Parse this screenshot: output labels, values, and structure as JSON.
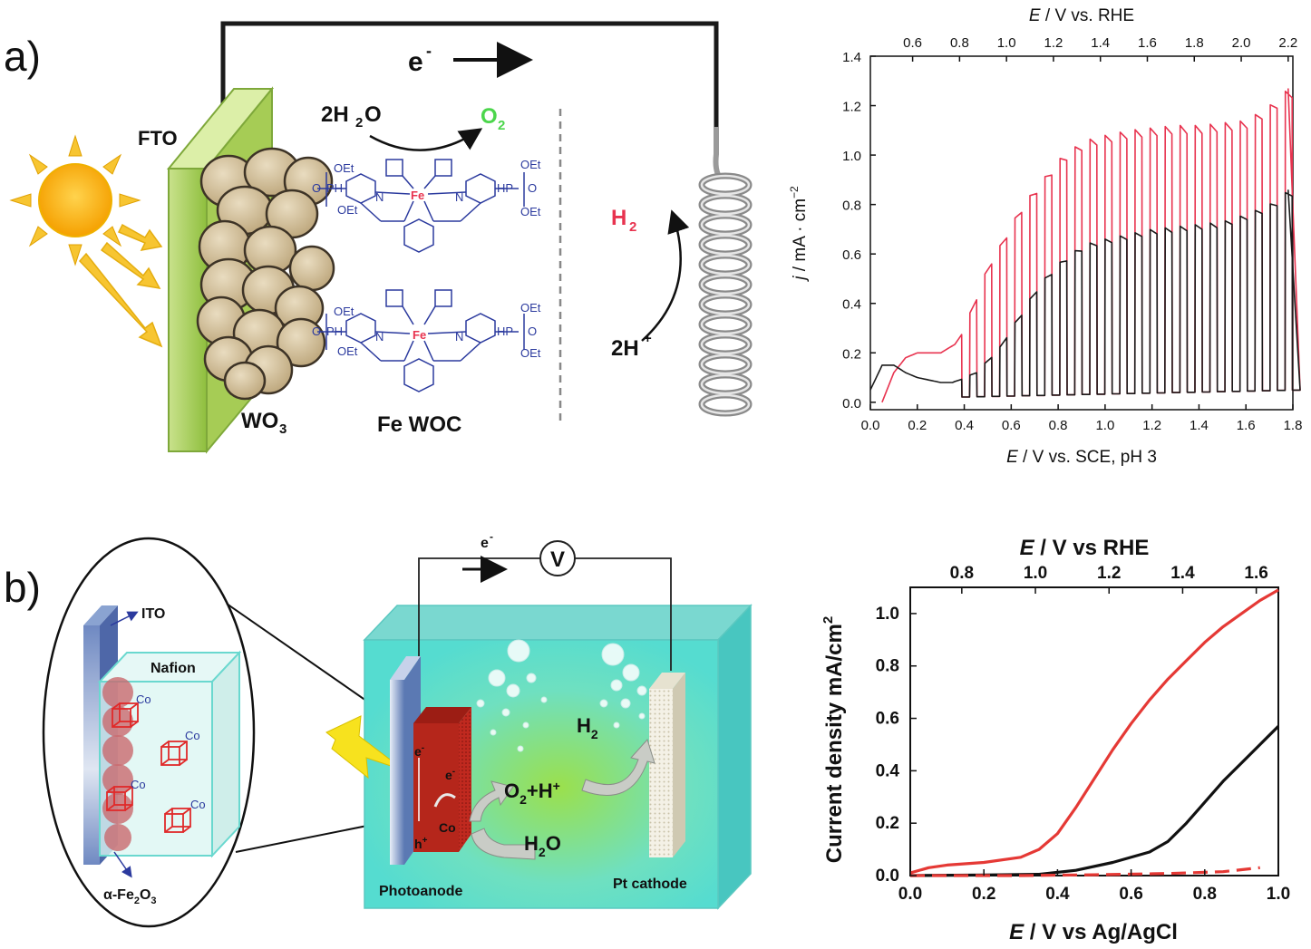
{
  "panels": {
    "a": {
      "label": "a)",
      "schematic": {
        "electron_label": "e",
        "electron_sup": "-",
        "fto": "FTO",
        "water": "2H",
        "water_sub": "2",
        "water_tail": "O",
        "oxygen": "O",
        "oxygen_sub": "2",
        "hydrogen": "H",
        "hydrogen_sub": "2",
        "protons": "2H",
        "protons_sup": "+",
        "wo3": "WO",
        "wo3_sub": "3",
        "catalyst": "Fe WOC",
        "fe": "Fe",
        "oet": "OEt",
        "o": "O",
        "ph": "PH",
        "hp": "HP",
        "n": "N"
      }
    },
    "b": {
      "label": "b)",
      "schematic": {
        "electron_label": "e",
        "electron_sup": "-",
        "voltmeter": "V",
        "ito": "ITO",
        "nafion": "Nafion",
        "co": "Co",
        "fe2o3": "α-Fe",
        "fe2o3_sub": "2",
        "fe2o3_tail": "O",
        "fe2o3_sub2": "3",
        "h2": "H",
        "h2_sub": "2",
        "o2h": "O",
        "o2h_sub": "2",
        "o2h_tail": "+H",
        "o2h_sup": "+",
        "water": "H",
        "water_sub": "2",
        "water_tail": "O",
        "e_minus": "e",
        "h_plus": "h",
        "photoanode": "Photoanode",
        "cathode": "Pt cathode"
      }
    }
  },
  "chart_data": [
    {
      "type": "line",
      "xlabel_italic": "E",
      "xlabel_rest": " / V vs. SCE, pH 3",
      "top_xlabel_italic": "E",
      "top_xlabel_rest": " / V vs. RHE",
      "ylabel_italic": "j",
      "ylabel_rest": " / mA · cm",
      "ylabel_sup": "−2",
      "xlim": [
        0.0,
        1.8
      ],
      "ylim": [
        -0.03,
        1.4
      ],
      "xticks": [
        "0.0",
        "0.2",
        "0.4",
        "0.6",
        "0.8",
        "1.0",
        "1.2",
        "1.4",
        "1.6",
        "1.8"
      ],
      "yticks": [
        "0.0",
        "0.2",
        "0.4",
        "0.6",
        "0.8",
        "1.0",
        "1.2",
        "1.4"
      ],
      "top_xticks": [
        "0.6",
        "0.8",
        "1.0",
        "1.2",
        "1.4",
        "1.6",
        "1.8",
        "2.0",
        "2.2"
      ],
      "top_offset": 0.42,
      "grid": false,
      "series": [
        {
          "color": "#e8334f",
          "chopped": true,
          "dark_value": 0.0,
          "envelope": [
            [
              0.05,
              0.0
            ],
            [
              0.1,
              0.12
            ],
            [
              0.15,
              0.18
            ],
            [
              0.2,
              0.2
            ],
            [
              0.3,
              0.2
            ],
            [
              0.37,
              0.24
            ],
            [
              0.45,
              0.42
            ],
            [
              0.5,
              0.55
            ],
            [
              0.55,
              0.63
            ],
            [
              0.6,
              0.72
            ],
            [
              0.65,
              0.8
            ],
            [
              0.7,
              0.86
            ],
            [
              0.75,
              0.92
            ],
            [
              0.8,
              0.98
            ],
            [
              0.85,
              1.02
            ],
            [
              0.9,
              1.05
            ],
            [
              0.95,
              1.07
            ],
            [
              1.0,
              1.08
            ],
            [
              1.05,
              1.09
            ],
            [
              1.1,
              1.1
            ],
            [
              1.2,
              1.11
            ],
            [
              1.3,
              1.12
            ],
            [
              1.4,
              1.12
            ],
            [
              1.5,
              1.13
            ],
            [
              1.6,
              1.14
            ],
            [
              1.65,
              1.17
            ],
            [
              1.7,
              1.2
            ],
            [
              1.75,
              1.24
            ],
            [
              1.78,
              1.27
            ]
          ]
        },
        {
          "color": "#1a1a1a",
          "chopped": true,
          "dark_value": 0.0,
          "envelope": [
            [
              0.0,
              0.05
            ],
            [
              0.05,
              0.15
            ],
            [
              0.1,
              0.15
            ],
            [
              0.15,
              0.12
            ],
            [
              0.2,
              0.1
            ],
            [
              0.3,
              0.08
            ],
            [
              0.35,
              0.08
            ],
            [
              0.45,
              0.12
            ],
            [
              0.5,
              0.17
            ],
            [
              0.55,
              0.22
            ],
            [
              0.6,
              0.3
            ],
            [
              0.65,
              0.37
            ],
            [
              0.7,
              0.45
            ],
            [
              0.75,
              0.51
            ],
            [
              0.8,
              0.56
            ],
            [
              0.85,
              0.6
            ],
            [
              0.9,
              0.63
            ],
            [
              0.95,
              0.65
            ],
            [
              1.0,
              0.66
            ],
            [
              1.05,
              0.67
            ],
            [
              1.1,
              0.68
            ],
            [
              1.2,
              0.7
            ],
            [
              1.3,
              0.71
            ],
            [
              1.4,
              0.72
            ],
            [
              1.5,
              0.73
            ],
            [
              1.6,
              0.76
            ],
            [
              1.65,
              0.78
            ],
            [
              1.7,
              0.8
            ],
            [
              1.75,
              0.83
            ],
            [
              1.78,
              0.86
            ]
          ]
        }
      ]
    },
    {
      "type": "line",
      "xlabel_italic": "E",
      "xlabel_rest": " / V vs Ag/AgCl",
      "top_xlabel_italic": "E",
      "top_xlabel_rest": " / V vs RHE",
      "ylabel": "Current density mA/cm",
      "ylabel_sup": "2",
      "xlim": [
        0.0,
        1.0
      ],
      "ylim": [
        0.0,
        1.1
      ],
      "xticks": [
        "0.0",
        "0.2",
        "0.4",
        "0.6",
        "0.8",
        "1.0"
      ],
      "yticks": [
        "0.0",
        "0.2",
        "0.4",
        "0.6",
        "0.8",
        "1.0"
      ],
      "top_xticks": [
        "0.8",
        "1.0",
        "1.2",
        "1.4",
        "1.6"
      ],
      "top_offset": 0.66,
      "grid": false,
      "series": [
        {
          "color": "#e53935",
          "style": "solid",
          "points": [
            [
              0.0,
              0.01
            ],
            [
              0.05,
              0.03
            ],
            [
              0.1,
              0.04
            ],
            [
              0.2,
              0.05
            ],
            [
              0.3,
              0.07
            ],
            [
              0.35,
              0.1
            ],
            [
              0.4,
              0.16
            ],
            [
              0.45,
              0.26
            ],
            [
              0.5,
              0.37
            ],
            [
              0.55,
              0.48
            ],
            [
              0.6,
              0.58
            ],
            [
              0.65,
              0.67
            ],
            [
              0.7,
              0.75
            ],
            [
              0.75,
              0.82
            ],
            [
              0.8,
              0.89
            ],
            [
              0.85,
              0.95
            ],
            [
              0.9,
              1.0
            ],
            [
              0.95,
              1.05
            ],
            [
              1.0,
              1.09
            ]
          ]
        },
        {
          "color": "#111111",
          "style": "solid",
          "points": [
            [
              0.0,
              0.0
            ],
            [
              0.2,
              0.002
            ],
            [
              0.35,
              0.005
            ],
            [
              0.45,
              0.02
            ],
            [
              0.55,
              0.05
            ],
            [
              0.65,
              0.09
            ],
            [
              0.7,
              0.13
            ],
            [
              0.75,
              0.2
            ],
            [
              0.8,
              0.28
            ],
            [
              0.85,
              0.36
            ],
            [
              0.9,
              0.43
            ],
            [
              0.95,
              0.5
            ],
            [
              1.0,
              0.57
            ]
          ]
        },
        {
          "color": "#e53935",
          "style": "dashed",
          "points": [
            [
              0.0,
              0.0
            ],
            [
              0.3,
              0.0
            ],
            [
              0.5,
              0.003
            ],
            [
              0.7,
              0.008
            ],
            [
              0.85,
              0.015
            ],
            [
              0.95,
              0.03
            ]
          ]
        }
      ]
    }
  ]
}
